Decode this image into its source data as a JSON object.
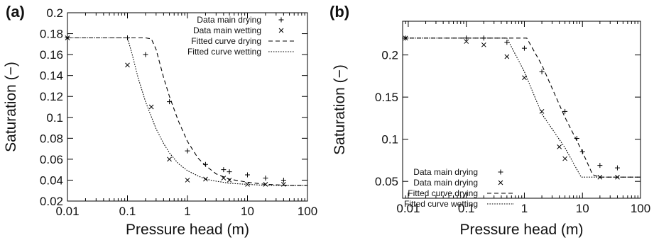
{
  "chart_data": [
    {
      "panel_label": "(a)",
      "type": "scatter",
      "xscale": "log",
      "xlabel": "Pressure head  (m)",
      "ylabel": "Saturation (−)",
      "xlim": [
        0.01,
        100
      ],
      "ylim": [
        0.02,
        0.2
      ],
      "xticks": [
        0.01,
        0.1,
        1,
        10,
        100
      ],
      "xtick_labels": [
        "0.01",
        "0.1",
        "1",
        "10",
        "100"
      ],
      "yticks": [
        0.02,
        0.04,
        0.06,
        0.08,
        0.1,
        0.12,
        0.14,
        0.16,
        0.18,
        0.2
      ],
      "ytick_labels": [
        "0.02",
        "0.04",
        "0.06",
        "0.08",
        "0.1",
        "0.12",
        "0.14",
        "0.16",
        "0.18",
        "0.2"
      ],
      "legend_position": "top-right",
      "series": [
        {
          "name": "Data main drying",
          "kind": "points",
          "marker": "plus",
          "x": [
            0.01,
            0.1,
            0.2,
            0.5,
            1,
            2,
            4,
            5,
            10,
            20,
            40
          ],
          "y": [
            0.176,
            0.176,
            0.16,
            0.115,
            0.068,
            0.055,
            0.05,
            0.048,
            0.045,
            0.042,
            0.04
          ]
        },
        {
          "name": "Data main wetting",
          "kind": "points",
          "marker": "cross",
          "x": [
            0.01,
            0.1,
            0.25,
            0.5,
            1,
            2,
            4,
            5,
            10,
            20,
            40
          ],
          "y": [
            0.176,
            0.15,
            0.11,
            0.06,
            0.04,
            0.041,
            0.042,
            0.04,
            0.036,
            0.036,
            0.036
          ]
        },
        {
          "name": "Fitted curve drying",
          "kind": "line",
          "dash": "dashed",
          "x": [
            0.01,
            0.1,
            0.2,
            0.25,
            0.3,
            0.4,
            0.5,
            0.7,
            1,
            1.5,
            2,
            3,
            5,
            10,
            20,
            50,
            100
          ],
          "y": [
            0.176,
            0.176,
            0.176,
            0.175,
            0.165,
            0.138,
            0.12,
            0.097,
            0.077,
            0.061,
            0.054,
            0.046,
            0.041,
            0.038,
            0.036,
            0.035,
            0.035
          ]
        },
        {
          "name": "Fitted curve wetting",
          "kind": "line",
          "dash": "dotted",
          "x": [
            0.01,
            0.1,
            0.12,
            0.15,
            0.2,
            0.3,
            0.4,
            0.5,
            0.7,
            1,
            1.5,
            2,
            3,
            5,
            10,
            20,
            50,
            100
          ],
          "y": [
            0.176,
            0.176,
            0.16,
            0.138,
            0.115,
            0.089,
            0.075,
            0.066,
            0.056,
            0.049,
            0.044,
            0.041,
            0.039,
            0.037,
            0.036,
            0.035,
            0.035,
            0.035
          ]
        }
      ]
    },
    {
      "panel_label": "(b)",
      "type": "scatter",
      "xscale": "log",
      "xlabel": "Pressure head  (m)",
      "ylabel": "Saturation (−)",
      "xlim": [
        0.008,
        100
      ],
      "ylim": [
        0.03,
        0.24
      ],
      "xticks": [
        0.01,
        0.1,
        1,
        10,
        100
      ],
      "xtick_labels": [
        "0.01",
        "0.1",
        "1",
        "10",
        "100"
      ],
      "yticks": [
        0.05,
        0.1,
        0.15,
        0.2
      ],
      "ytick_labels": [
        "0.05",
        "0.1",
        "0.15",
        "0.2"
      ],
      "legend_position": "bottom-left",
      "series": [
        {
          "name": "Data main drying",
          "kind": "points",
          "marker": "plus",
          "x": [
            0.009,
            0.1,
            0.2,
            0.5,
            1,
            2,
            5,
            8,
            10,
            20,
            40
          ],
          "y": [
            0.22,
            0.22,
            0.22,
            0.215,
            0.208,
            0.18,
            0.133,
            0.101,
            0.085,
            0.069,
            0.066
          ]
        },
        {
          "name": "Data main drying",
          "kind": "points",
          "marker": "cross",
          "x": [
            0.009,
            0.1,
            0.2,
            0.5,
            1,
            2,
            4,
            5,
            20,
            40
          ],
          "y": [
            0.22,
            0.216,
            0.212,
            0.198,
            0.173,
            0.133,
            0.091,
            0.077,
            0.055,
            0.055
          ]
        },
        {
          "name": "Fitted curve drying",
          "kind": "line",
          "dash": "dashed",
          "x": [
            0.008,
            1.1,
            2,
            5,
            10,
            15,
            20,
            50,
            100
          ],
          "y": [
            0.22,
            0.22,
            0.188,
            0.126,
            0.085,
            0.058,
            0.055,
            0.055,
            0.055
          ]
        },
        {
          "name": "Fitted curve wetting",
          "kind": "line",
          "dash": "dotted",
          "x": [
            0.008,
            0.5,
            1,
            2,
            5,
            9.5,
            20,
            50,
            100
          ],
          "y": [
            0.22,
            0.22,
            0.18,
            0.13,
            0.09,
            0.055,
            0.055,
            0.055,
            0.055
          ]
        }
      ]
    }
  ]
}
